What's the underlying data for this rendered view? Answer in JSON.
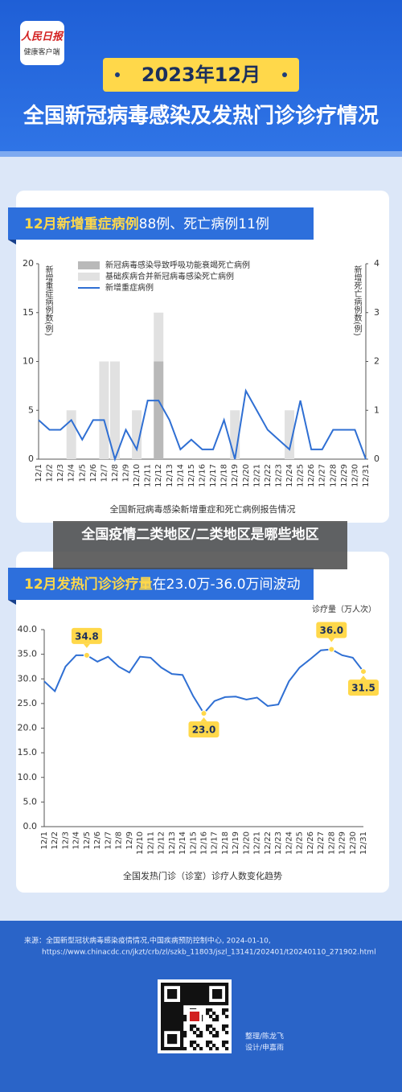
{
  "header": {
    "logo": "人民日报",
    "logo_sub": "健康客户端",
    "date": "2023年12月",
    "title": "全国新冠病毒感染及发热门诊诊疗情况"
  },
  "overlay": "全国疫情二类地区/二类地区是哪些地区",
  "chart_data": [
    {
      "type": "bar",
      "title_highlight": "12月新增重症病例",
      "title": "88例、死亡病例11例",
      "caption": "全国新冠病毒感染新增重症和死亡病例报告情况",
      "ylabel": "新增重症病例数(例)",
      "y2label": "新增死亡病例数(例)",
      "categories": [
        "12/1",
        "12/2",
        "12/3",
        "12/4",
        "12/5",
        "12/6",
        "12/7",
        "12/8",
        "12/9",
        "12/10",
        "12/11",
        "12/12",
        "12/13",
        "12/14",
        "12/15",
        "12/16",
        "12/17",
        "12/18",
        "12/19",
        "12/20",
        "12/21",
        "12/22",
        "12/23",
        "12/24",
        "12/25",
        "12/26",
        "12/27",
        "12/28",
        "12/29",
        "12/30",
        "12/31"
      ],
      "ylim": [
        0,
        20
      ],
      "yticks": [
        0,
        5,
        10,
        15,
        20
      ],
      "y2lim": [
        0,
        4
      ],
      "y2ticks": [
        0,
        1,
        2,
        3,
        4
      ],
      "stacked": true,
      "series": [
        {
          "name": "新冠病毒感染导致呼吸功能衰竭死亡病例",
          "type": "bar",
          "axis": "y2",
          "color": "#b9b9b9",
          "values": [
            0,
            0,
            0,
            0,
            0,
            0,
            0,
            0,
            0,
            0,
            0,
            2,
            0,
            0,
            0,
            0,
            0,
            0,
            0,
            0,
            0,
            0,
            0,
            0,
            0,
            0,
            0,
            0,
            0,
            0,
            0
          ]
        },
        {
          "name": "基础疾病合并新冠病毒感染死亡病例",
          "type": "bar",
          "axis": "y2",
          "color": "#e1e1e1",
          "values": [
            0,
            0,
            0,
            1,
            0,
            0,
            2,
            2,
            0,
            1,
            0,
            1,
            0,
            0,
            0,
            0,
            0,
            0,
            1,
            0,
            0,
            0,
            0,
            1,
            0,
            0,
            0,
            0,
            0,
            0,
            0
          ]
        },
        {
          "name": "新增重症病例",
          "type": "line",
          "color": "#2f6fd3",
          "values": [
            4,
            3,
            3,
            4,
            2,
            4,
            4,
            0,
            3,
            1,
            6,
            6,
            4,
            1,
            2,
            1,
            1,
            4,
            0,
            7,
            5,
            3,
            2,
            1,
            6,
            1,
            1,
            3,
            3,
            3,
            0
          ]
        }
      ]
    },
    {
      "type": "line",
      "title_highlight": "12月发热门诊诊疗量",
      "title": "在23.0万-36.0万间波动",
      "caption": "全国发热门诊（诊室）诊疗人数变化趋势",
      "ylabel": "诊疗量（万人次）",
      "categories": [
        "12/1",
        "12/2",
        "12/3",
        "12/4",
        "12/5",
        "12/6",
        "12/7",
        "12/8",
        "12/9",
        "12/10",
        "12/11",
        "12/12",
        "12/13",
        "12/14",
        "12/15",
        "12/16",
        "12/17",
        "12/18",
        "12/19",
        "12/20",
        "12/21",
        "12/22",
        "12/23",
        "12/24",
        "12/25",
        "12/26",
        "12/27",
        "12/28",
        "12/29",
        "12/30",
        "12/31"
      ],
      "ylim": [
        0,
        40
      ],
      "yticks": [
        {
          "value": 0,
          "label": "0.0"
        },
        {
          "value": 5,
          "label": "5.0"
        },
        {
          "value": 10,
          "label": "10.0"
        },
        {
          "value": 15,
          "label": "15.0"
        },
        {
          "value": 20,
          "label": "20.0"
        },
        {
          "value": 25,
          "label": "25.0"
        },
        {
          "value": 30,
          "label": "30.0"
        },
        {
          "value": 35,
          "label": "35.0"
        },
        {
          "value": 40,
          "label": "40.0"
        }
      ],
      "color": "#2f6fd3",
      "values": [
        29.5,
        27.5,
        32.5,
        34.8,
        34.8,
        33.5,
        34.5,
        32.5,
        31.3,
        34.5,
        34.3,
        32.3,
        31.0,
        30.8,
        26.5,
        23.0,
        25.5,
        26.3,
        26.4,
        25.8,
        26.2,
        24.5,
        24.8,
        29.5,
        32.3,
        34.0,
        35.8,
        36.0,
        34.8,
        34.3,
        31.5
      ],
      "value_labels": [
        null,
        null,
        null,
        null,
        "34.8",
        null,
        null,
        null,
        null,
        null,
        null,
        null,
        null,
        null,
        null,
        "23.0",
        null,
        null,
        null,
        null,
        null,
        null,
        null,
        null,
        null,
        null,
        null,
        "36.0",
        null,
        null,
        "31.5"
      ]
    }
  ],
  "footer": {
    "source": "来源：全国新型冠状病毒感染疫情情况,中国疾病预防控制中心, 2024-01-10,",
    "url": "https://www.chinacdc.cn/jkzt/crb/zl/szkb_11803/jszl_13141/202401/t20240110_271902.html",
    "editor": "整理/陈龙飞",
    "designer": "设计/申嘉雨"
  }
}
